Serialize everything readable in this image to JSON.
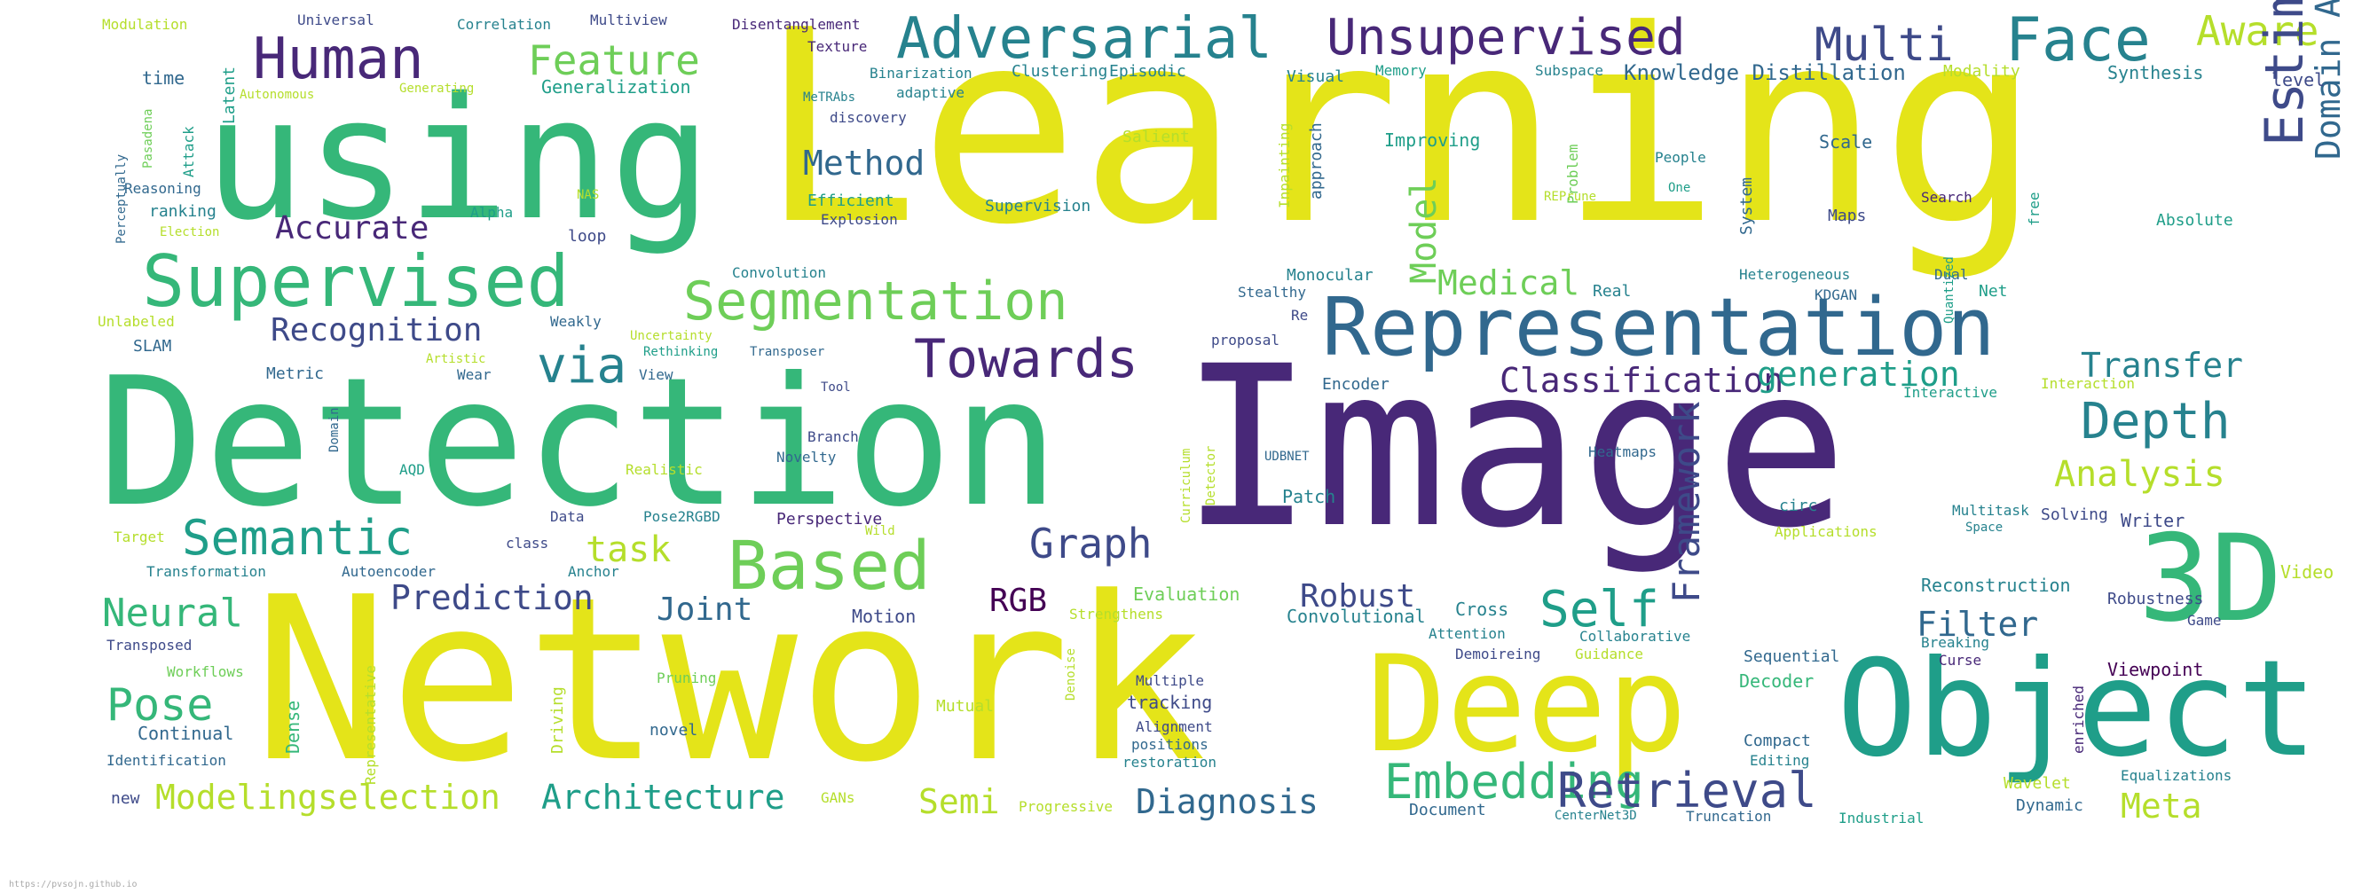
{
  "palette": {
    "c0": "#440154",
    "c1": "#482878",
    "c2": "#3e4a89",
    "c3": "#31688e",
    "c4": "#26828e",
    "c5": "#1f9e89",
    "c6": "#35b779",
    "c7": "#6ece58",
    "c8": "#b5de2b",
    "c9": "#e4e419"
  },
  "footer": "https://pvsojn.github.io",
  "words": [
    {
      "text": "Learning",
      "color": "c9"
    },
    {
      "text": "Image",
      "color": "c1"
    },
    {
      "text": "Network",
      "color": "c9"
    },
    {
      "text": "Detection",
      "color": "c6"
    },
    {
      "text": "using",
      "color": "c6"
    },
    {
      "text": "Deep",
      "color": "c9"
    },
    {
      "text": "Object",
      "color": "c5"
    },
    {
      "text": "3D",
      "color": "c6"
    },
    {
      "text": "Representation",
      "color": "c3"
    },
    {
      "text": "Supervised",
      "color": "c6"
    },
    {
      "text": "Adversarial",
      "color": "c4"
    },
    {
      "text": "Unsupervised",
      "color": "c1"
    },
    {
      "text": "Human",
      "color": "c1"
    },
    {
      "text": "Face",
      "color": "c4"
    },
    {
      "text": "Multi",
      "color": "c2"
    },
    {
      "text": "Aware",
      "color": "c8"
    },
    {
      "text": "Feature",
      "color": "c7"
    },
    {
      "text": "Segmentation",
      "color": "c7"
    },
    {
      "text": "Towards",
      "color": "c1"
    },
    {
      "text": "via",
      "color": "c4"
    },
    {
      "text": "Semantic",
      "color": "c5"
    },
    {
      "text": "Based",
      "color": "c7"
    },
    {
      "text": "Estimation",
      "color": "c2"
    },
    {
      "text": "Domain Adaptation",
      "color": "c3"
    },
    {
      "text": "Depth",
      "color": "c4"
    },
    {
      "text": "Classification",
      "color": "c1"
    },
    {
      "text": "generation",
      "color": "c5"
    },
    {
      "text": "Transfer",
      "color": "c4"
    },
    {
      "text": "Analysis",
      "color": "c8"
    },
    {
      "text": "Framework",
      "color": "c2"
    },
    {
      "text": "Graph",
      "color": "c2"
    },
    {
      "text": "Self",
      "color": "c5"
    },
    {
      "text": "Embedding",
      "color": "c6"
    },
    {
      "text": "Retrieval",
      "color": "c2"
    },
    {
      "text": "Pose",
      "color": "c6"
    },
    {
      "text": "Neural",
      "color": "c6"
    },
    {
      "text": "Modelingselection",
      "color": "c8"
    },
    {
      "text": "Architecture",
      "color": "c5"
    },
    {
      "text": "Semi",
      "color": "c8"
    },
    {
      "text": "Diagnosis",
      "color": "c3"
    },
    {
      "text": "Meta",
      "color": "c8"
    },
    {
      "text": "Recognition",
      "color": "c2"
    },
    {
      "text": "Accurate",
      "color": "c1"
    },
    {
      "text": "Method",
      "color": "c3"
    },
    {
      "text": "Model",
      "color": "c7"
    },
    {
      "text": "Medical",
      "color": "c7"
    },
    {
      "text": "task",
      "color": "c8"
    },
    {
      "text": "Prediction",
      "color": "c2"
    },
    {
      "text": "Joint",
      "color": "c3"
    },
    {
      "text": "Robust",
      "color": "c2"
    },
    {
      "text": "RGB",
      "color": "c0"
    },
    {
      "text": "Filter",
      "color": "c3"
    },
    {
      "text": "Knowledge Distillation",
      "color": "c3"
    },
    {
      "text": "Generalization",
      "color": "c5"
    },
    {
      "text": "Modulation",
      "color": "c8"
    },
    {
      "text": "Universal",
      "color": "c2"
    },
    {
      "text": "Correlation",
      "color": "c4"
    },
    {
      "text": "Multiview",
      "color": "c2"
    },
    {
      "text": "Disentanglement",
      "color": "c1"
    },
    {
      "text": "Texture",
      "color": "c1"
    },
    {
      "text": "Binarization",
      "color": "c4"
    },
    {
      "text": "Clustering",
      "color": "c4"
    },
    {
      "text": "Episodic",
      "color": "c4"
    },
    {
      "text": "Visual",
      "color": "c4"
    },
    {
      "text": "Memory",
      "color": "c5"
    },
    {
      "text": "Subspace",
      "color": "c4"
    },
    {
      "text": "Modality",
      "color": "c8"
    },
    {
      "text": "Synthesis",
      "color": "c4"
    },
    {
      "text": "level",
      "color": "c2"
    },
    {
      "text": "time",
      "color": "c3"
    },
    {
      "text": "Latent",
      "color": "c5"
    },
    {
      "text": "Autonomous",
      "color": "c8"
    },
    {
      "text": "Generating",
      "color": "c8"
    },
    {
      "text": "MeTRAbs",
      "color": "c4"
    },
    {
      "text": "adaptive",
      "color": "c4"
    },
    {
      "text": "discovery",
      "color": "c2"
    },
    {
      "text": "Perceptually",
      "color": "c3"
    },
    {
      "text": "Pasadena",
      "color": "c7"
    },
    {
      "text": "Attack",
      "color": "c5"
    },
    {
      "text": "Reasoning",
      "color": "c3"
    },
    {
      "text": "ranking",
      "color": "c4"
    },
    {
      "text": "Election",
      "color": "c8"
    },
    {
      "text": "Alpha",
      "color": "c5"
    },
    {
      "text": "NAS",
      "color": "c8"
    },
    {
      "text": "loop",
      "color": "c2"
    },
    {
      "text": "Efficient",
      "color": "c5"
    },
    {
      "text": "Explosion",
      "color": "c2"
    },
    {
      "text": "Salient",
      "color": "c8"
    },
    {
      "text": "Supervision",
      "color": "c4"
    },
    {
      "text": "Inpainting",
      "color": "c8"
    },
    {
      "text": "approach",
      "color": "c3"
    },
    {
      "text": "Improving",
      "color": "c5"
    },
    {
      "text": "Problem",
      "color": "c7"
    },
    {
      "text": "REPrune",
      "color": "c8"
    },
    {
      "text": "System",
      "color": "c3"
    },
    {
      "text": "People",
      "color": "c4"
    },
    {
      "text": "One",
      "color": "c5"
    },
    {
      "text": "Scale",
      "color": "c3"
    },
    {
      "text": "Maps",
      "color": "c2"
    },
    {
      "text": "Search",
      "color": "c1"
    },
    {
      "text": "free",
      "color": "c5"
    },
    {
      "text": "Absolute",
      "color": "c5"
    },
    {
      "text": "Convolution",
      "color": "c4"
    },
    {
      "text": "Monocular",
      "color": "c4"
    },
    {
      "text": "Stealthy",
      "color": "c3"
    },
    {
      "text": "Re",
      "color": "c2"
    },
    {
      "text": "Real",
      "color": "c4"
    },
    {
      "text": "Heterogeneous",
      "color": "c4"
    },
    {
      "text": "KDGAN",
      "color": "c3"
    },
    {
      "text": "Dual",
      "color": "c3"
    },
    {
      "text": "Quantized",
      "color": "c5"
    },
    {
      "text": "Net",
      "color": "c5"
    },
    {
      "text": "Unlabeled",
      "color": "c8"
    },
    {
      "text": "Weakly",
      "color": "c3"
    },
    {
      "text": "Uncertainty",
      "color": "c8"
    },
    {
      "text": "Rethinking",
      "color": "c5"
    },
    {
      "text": "Transposer",
      "color": "c3"
    },
    {
      "text": "proposal",
      "color": "c2"
    },
    {
      "text": "SLAM",
      "color": "c3"
    },
    {
      "text": "Artistic",
      "color": "c8"
    },
    {
      "text": "Wear",
      "color": "c3"
    },
    {
      "text": "View",
      "color": "c3"
    },
    {
      "text": "Metric",
      "color": "c3"
    },
    {
      "text": "Tool",
      "color": "c2"
    },
    {
      "text": "Encoder",
      "color": "c3"
    },
    {
      "text": "Interactive",
      "color": "c5"
    },
    {
      "text": "Interaction",
      "color": "c8"
    },
    {
      "text": "Domain",
      "color": "c3"
    },
    {
      "text": "Branch",
      "color": "c2"
    },
    {
      "text": "Novelty",
      "color": "c3"
    },
    {
      "text": "Curriculum",
      "color": "c8"
    },
    {
      "text": "Detector",
      "color": "c8"
    },
    {
      "text": "UDBNET",
      "color": "c3"
    },
    {
      "text": "Heatmaps",
      "color": "c3"
    },
    {
      "text": "AQD",
      "color": "c5"
    },
    {
      "text": "Realistic",
      "color": "c8"
    },
    {
      "text": "Patch",
      "color": "c4"
    },
    {
      "text": "circ",
      "color": "c4"
    },
    {
      "text": "Target",
      "color": "c8"
    },
    {
      "text": "class",
      "color": "c2"
    },
    {
      "text": "Data",
      "color": "c2"
    },
    {
      "text": "Pose2RGBD",
      "color": "c4"
    },
    {
      "text": "Perspective",
      "color": "c1"
    },
    {
      "text": "Wild",
      "color": "c8"
    },
    {
      "text": "Applications",
      "color": "c8"
    },
    {
      "text": "Multitask",
      "color": "c4"
    },
    {
      "text": "Space",
      "color": "c4"
    },
    {
      "text": "Solving",
      "color": "c2"
    },
    {
      "text": "Writer",
      "color": "c2"
    },
    {
      "text": "Transformation",
      "color": "c4"
    },
    {
      "text": "Autoencoder",
      "color": "c3"
    },
    {
      "text": "Anchor",
      "color": "c4"
    },
    {
      "text": "Evaluation",
      "color": "c7"
    },
    {
      "text": "Strengthens",
      "color": "c8"
    },
    {
      "text": "Reconstruction",
      "color": "c4"
    },
    {
      "text": "Robustness",
      "color": "c2"
    },
    {
      "text": "Video",
      "color": "c8"
    },
    {
      "text": "Game",
      "color": "c2"
    },
    {
      "text": "Convolutional",
      "color": "c4"
    },
    {
      "text": "Cross",
      "color": "c4"
    },
    {
      "text": "Motion",
      "color": "c2"
    },
    {
      "text": "Attention",
      "color": "c4"
    },
    {
      "text": "Collaborative",
      "color": "c4"
    },
    {
      "text": "Demoireing",
      "color": "c2"
    },
    {
      "text": "Guidance",
      "color": "c8"
    },
    {
      "text": "Sequential",
      "color": "c3"
    },
    {
      "text": "Breaking",
      "color": "c4"
    },
    {
      "text": "Curse",
      "color": "c1"
    },
    {
      "text": "Viewpoint",
      "color": "c0"
    },
    {
      "text": "enriched",
      "color": "c1"
    },
    {
      "text": "Transposed",
      "color": "c2"
    },
    {
      "text": "Workflows",
      "color": "c7"
    },
    {
      "text": "Representative",
      "color": "c8"
    },
    {
      "text": "Pruning",
      "color": "c7"
    },
    {
      "text": "Denoise",
      "color": "c8"
    },
    {
      "text": "Multiple",
      "color": "c2"
    },
    {
      "text": "tracking",
      "color": "c2"
    },
    {
      "text": "Alignment",
      "color": "c2"
    },
    {
      "text": "positions",
      "color": "c3"
    },
    {
      "text": "restoration",
      "color": "c4"
    },
    {
      "text": "Decoder",
      "color": "c6"
    },
    {
      "text": "Compact",
      "color": "c3"
    },
    {
      "text": "Editing",
      "color": "c4"
    },
    {
      "text": "Continual",
      "color": "c3"
    },
    {
      "text": "Dense",
      "color": "c6"
    },
    {
      "text": "Driving",
      "color": "c8"
    },
    {
      "text": "Mutual",
      "color": "c8"
    },
    {
      "text": "novel",
      "color": "c3"
    },
    {
      "text": "Identification",
      "color": "c3"
    },
    {
      "text": "new",
      "color": "c2"
    },
    {
      "text": "GANs",
      "color": "c8"
    },
    {
      "text": "Progressive",
      "color": "c8"
    },
    {
      "text": "Document",
      "color": "c3"
    },
    {
      "text": "CenterNet3D",
      "color": "c4"
    },
    {
      "text": "Truncation",
      "color": "c3"
    },
    {
      "text": "Industrial",
      "color": "c5"
    },
    {
      "text": "Wavelet",
      "color": "c8"
    },
    {
      "text": "Equalizations",
      "color": "c4"
    },
    {
      "text": "Dynamic",
      "color": "c3"
    }
  ]
}
